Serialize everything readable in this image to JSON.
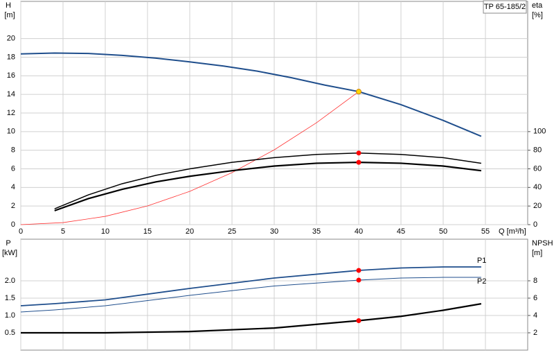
{
  "chart_data": [
    {
      "type": "line",
      "title": "TP 65-185/2",
      "ylabel": "H",
      "yunit": "[m]",
      "y2label": "eta",
      "y2unit": "[%]",
      "xlabel": "Q [m³/h]",
      "xlim": [
        0,
        60
      ],
      "xticks": [
        0,
        5,
        10,
        15,
        20,
        25,
        30,
        35,
        40,
        45,
        50,
        55
      ],
      "ylim": [
        0,
        24
      ],
      "yticks": [
        0,
        2,
        4,
        6,
        8,
        10,
        12,
        14,
        16,
        18,
        20
      ],
      "y2lim": [
        0,
        240
      ],
      "y2ticks": [
        0,
        20,
        40,
        60,
        80,
        100
      ],
      "grid": true,
      "series": [
        {
          "color": "#1f4e8c",
          "width": 2,
          "x": [
            0,
            4,
            8,
            12,
            16,
            20,
            24,
            28,
            32,
            36,
            40,
            45,
            50,
            54.5
          ],
          "values": [
            18.35,
            18.45,
            18.4,
            18.2,
            17.9,
            17.5,
            17.05,
            16.5,
            15.8,
            15.0,
            14.3,
            12.9,
            11.2,
            9.5
          ]
        },
        {
          "color": "#ff3030",
          "width": 0.8,
          "x": [
            0,
            5,
            10,
            15,
            20,
            25,
            30,
            35,
            40
          ],
          "values": [
            0,
            0.22,
            0.89,
            2.01,
            3.58,
            5.59,
            8.04,
            10.95,
            14.3
          ]
        },
        {
          "color": "#000000",
          "width": 1.5,
          "axis": "y2",
          "x": [
            4,
            8,
            12,
            16,
            20,
            25,
            30,
            35,
            40,
            45,
            50,
            54.5
          ],
          "values": [
            17,
            32,
            44,
            53,
            60,
            67,
            72,
            75.5,
            77,
            75.5,
            72,
            66
          ]
        },
        {
          "color": "#000000",
          "width": 2.2,
          "axis": "y2",
          "x": [
            4,
            8,
            12,
            16,
            20,
            25,
            30,
            35,
            40,
            45,
            50,
            54.5
          ],
          "values": [
            15,
            28,
            38,
            46,
            52,
            58,
            63,
            66,
            67,
            66,
            63,
            58
          ]
        }
      ],
      "points": [
        {
          "x": 40,
          "y": 14.3,
          "color": "#ffd700"
        },
        {
          "x": 40,
          "y": 77,
          "color": "#ff0000",
          "axis": "y2"
        },
        {
          "x": 40,
          "y": 67,
          "color": "#ff0000",
          "axis": "y2"
        }
      ]
    },
    {
      "type": "line",
      "ylabel": "P",
      "yunit": "[kW]",
      "y2label": "NPSH",
      "y2unit": "[m]",
      "ylim": [
        0,
        3.2
      ],
      "yticks": [
        0.5,
        {
          "value": 1,
          "label": "1.0"
        },
        1.5,
        {
          "value": 2,
          "label": "2.0"
        }
      ],
      "y2lim": [
        0,
        12.8
      ],
      "y2ticks": [
        2,
        4,
        6,
        8
      ],
      "grid": true,
      "series": [
        {
          "name": "P1",
          "color": "#1f4e8c",
          "width": 1.8,
          "x": [
            0,
            4,
            10,
            20,
            30,
            40,
            45,
            50,
            54.5
          ],
          "values": [
            1.28,
            1.34,
            1.45,
            1.78,
            2.08,
            2.3,
            2.37,
            2.4,
            2.4
          ]
        },
        {
          "name": "P2",
          "color": "#1f4e8c",
          "width": 1,
          "x": [
            0,
            4,
            10,
            20,
            30,
            40,
            45,
            50,
            54.5
          ],
          "values": [
            1.1,
            1.16,
            1.28,
            1.58,
            1.85,
            2.02,
            2.08,
            2.1,
            2.1
          ]
        },
        {
          "color": "#000000",
          "width": 2.2,
          "axis": "y2",
          "x": [
            0,
            4,
            10,
            20,
            30,
            40,
            45,
            50,
            54.5
          ],
          "values": [
            2.0,
            2.0,
            2.0,
            2.15,
            2.55,
            3.4,
            3.9,
            4.6,
            5.35
          ]
        }
      ],
      "points": [
        {
          "x": 40,
          "y": 2.3,
          "color": "#ff0000"
        },
        {
          "x": 40,
          "y": 2.02,
          "color": "#ff0000"
        },
        {
          "x": 40,
          "y": 3.4,
          "color": "#ff0000",
          "axis": "y2"
        }
      ]
    }
  ]
}
